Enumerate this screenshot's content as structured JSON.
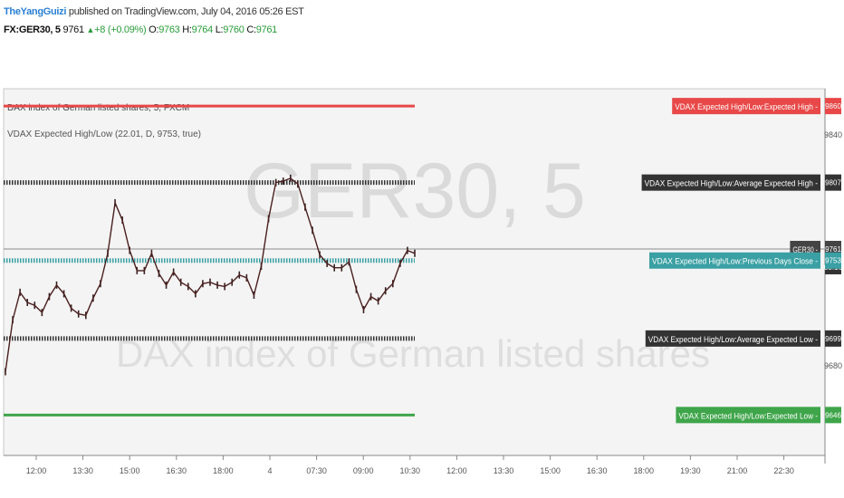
{
  "header": {
    "author": "TheYangGuizi",
    "published": "published on TradingView.com, July 04, 2016 05:26 EST",
    "symbol": "FX:GER30, 5",
    "last": "9761",
    "change": "+8 (+0.09%)",
    "o_label": "O:",
    "o_value": "9763",
    "h_label": "H:",
    "h_value": "9764",
    "l_label": "L:",
    "l_value": "9760",
    "c_label": "C:",
    "c_value": "9761"
  },
  "watermark": {
    "symbol": "GER30, 5",
    "description": "DAX index of German listed shares"
  },
  "legend": {
    "series_title": "DAX index of German listed shares, 5, FXCM",
    "indicator_title": "VDAX Expected High/Low (22.01, D, 9753, true)"
  },
  "chart_data": {
    "type": "line",
    "title": "DAX index of German listed shares, 5, FXCM",
    "ylim": [
      9618,
      9872
    ],
    "y_ticks": [
      9840,
      9680
    ],
    "x_ticks": [
      "12:00",
      "13:30",
      "15:00",
      "16:30",
      "18:00",
      "4",
      "07:30",
      "09:00",
      "10:30",
      "12:00",
      "13:30",
      "15:00",
      "16:30",
      "18:00",
      "19:30",
      "21:00",
      "22:30"
    ],
    "series": [
      {
        "name": "GER30",
        "values": [
          9676,
          9712,
          9731,
          9724,
          9722,
          9717,
          9728,
          9736,
          9730,
          9720,
          9716,
          9715,
          9727,
          9737,
          9758,
          9793,
          9781,
          9760,
          9746,
          9746,
          9758,
          9744,
          9736,
          9745,
          9738,
          9735,
          9730,
          9737,
          9738,
          9736,
          9735,
          9738,
          9743,
          9741,
          9729,
          9749,
          9782,
          9807,
          9808,
          9810,
          9806,
          9790,
          9774,
          9757,
          9751,
          9748,
          9748,
          9752,
          9733,
          9719,
          9728,
          9725,
          9732,
          9737,
          9751,
          9760,
          9758
        ]
      }
    ],
    "levels": [
      {
        "name": "VDAX Expected High/Low:Expected High",
        "value": 9860,
        "label": "9860",
        "color": "#e84848"
      },
      {
        "name": "VDAX Expected High/Low:Average Expected High",
        "value": 9807,
        "label": "9807",
        "color": "#333333"
      },
      {
        "name": "GER30",
        "value": 9761,
        "label": "9761",
        "color": "#444444",
        "sub": "03:16"
      },
      {
        "name": "VDAX Expected High/Low:Previous Days Close",
        "value": 9753,
        "label": "9753",
        "color": "#3aa0a3"
      },
      {
        "name": "VDAX Expected High/Low:Average Expected Low",
        "value": 9699,
        "label": "9699",
        "color": "#333333"
      },
      {
        "name": "VDAX Expected High/Low:Expected Low",
        "value": 9646,
        "label": "9646",
        "color": "#3fa54a"
      }
    ]
  }
}
